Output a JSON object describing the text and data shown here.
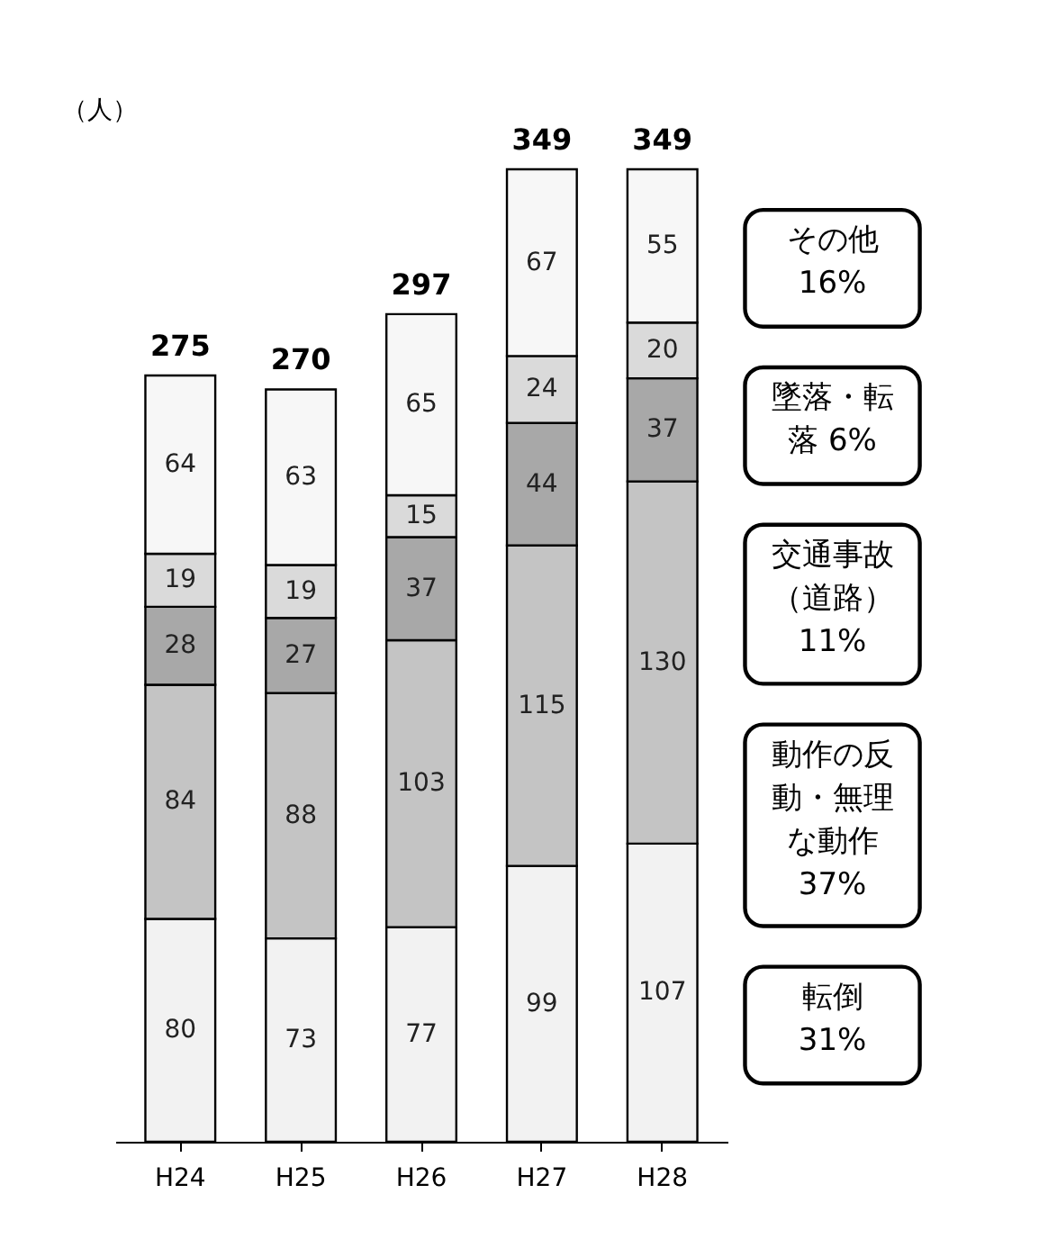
{
  "chart_data": {
    "type": "bar",
    "stacked": true,
    "ylabel": "（人）",
    "categories": [
      "H24",
      "H25",
      "H26",
      "H27",
      "H28"
    ],
    "series": [
      {
        "name": "転倒",
        "color": "#f2f2f2",
        "values": [
          80,
          73,
          77,
          99,
          107
        ]
      },
      {
        "name": "動作の反動・無理な動作",
        "color": "#c4c4c4",
        "values": [
          84,
          88,
          103,
          115,
          130
        ]
      },
      {
        "name": "交通事故（道路）",
        "color": "#a8a8a8",
        "values": [
          28,
          27,
          37,
          44,
          37
        ]
      },
      {
        "name": "墜落・転落",
        "color": "#dadada",
        "values": [
          19,
          19,
          15,
          24,
          20
        ]
      },
      {
        "name": "その他",
        "color": "#f7f7f7",
        "values": [
          64,
          63,
          65,
          67,
          55
        ]
      }
    ],
    "annotations": [
      "31%",
      "37%",
      "11%",
      "6%",
      "16%"
    ],
    "totals": [
      "275",
      "270",
      "297",
      "349",
      "349"
    ],
    "data_labels": true,
    "grid": false,
    "legend": "right"
  }
}
